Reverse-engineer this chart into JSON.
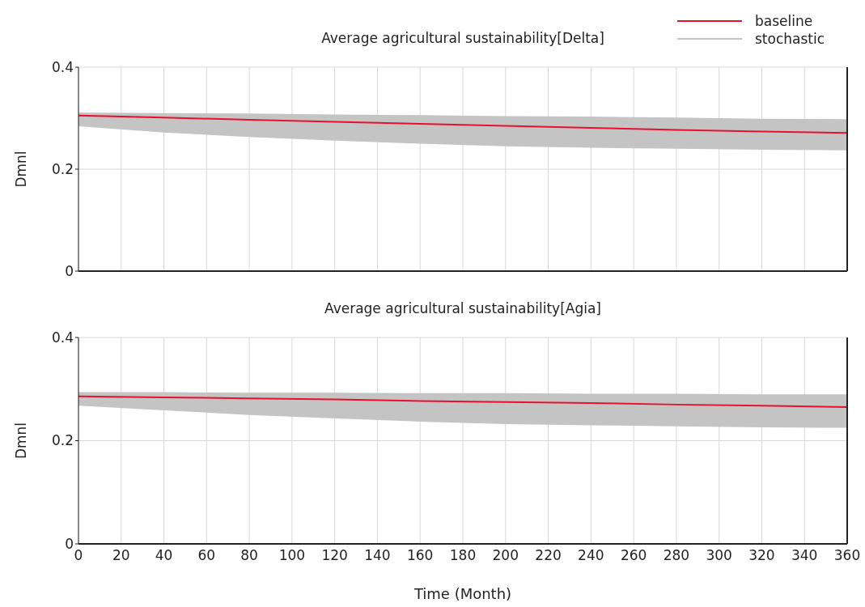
{
  "chart_data": [
    {
      "type": "line",
      "title": "Average agricultural sustainability[Delta]",
      "ylabel": "Dmnl",
      "x": [
        0,
        40,
        80,
        120,
        160,
        200,
        240,
        280,
        320,
        360
      ],
      "xlim": [
        0,
        360
      ],
      "xticks": [
        0,
        20,
        40,
        60,
        80,
        100,
        120,
        140,
        160,
        180,
        200,
        220,
        240,
        260,
        280,
        300,
        320,
        340,
        360
      ],
      "ylim": [
        0,
        0.4
      ],
      "yticks": [
        0,
        0.2,
        0.4
      ],
      "grid": true,
      "legend": "top right",
      "tick_labels": "y",
      "series": [
        {
          "name": "stochastic",
          "type": "area",
          "color": "#c4c4c4",
          "values": [
            null,
            null,
            null,
            null,
            null,
            null,
            null,
            null,
            null,
            null
          ],
          "lower": [
            0.284,
            0.272,
            0.263,
            0.256,
            0.25,
            0.245,
            0.242,
            0.24,
            0.238,
            0.237
          ],
          "upper": [
            0.311,
            0.31,
            0.309,
            0.307,
            0.306,
            0.304,
            0.303,
            0.301,
            0.299,
            0.298
          ]
        },
        {
          "name": "baseline",
          "color": "#e8102e",
          "values": [
            0.305,
            0.301,
            0.297,
            0.293,
            0.289,
            0.285,
            0.281,
            0.277,
            0.274,
            0.271
          ]
        }
      ]
    },
    {
      "type": "line",
      "title": "Average agricultural sustainability[Agia]",
      "ylabel": "Dmnl",
      "xlabel": "Time (Month)",
      "x": [
        0,
        40,
        80,
        120,
        160,
        200,
        240,
        280,
        320,
        360
      ],
      "xlim": [
        0,
        360
      ],
      "xticks": [
        0,
        20,
        40,
        60,
        80,
        100,
        120,
        140,
        160,
        180,
        200,
        220,
        240,
        260,
        280,
        300,
        320,
        340,
        360
      ],
      "ylim": [
        0,
        0.4
      ],
      "yticks": [
        0,
        0.2,
        0.4
      ],
      "grid": true,
      "series": [
        {
          "type": "area",
          "color": "#c4c4c4",
          "values": [
            null,
            null,
            null,
            null,
            null,
            null,
            null,
            null,
            null,
            null
          ],
          "lower": [
            0.268,
            0.259,
            0.25,
            0.243,
            0.237,
            0.232,
            0.23,
            0.228,
            0.226,
            0.225
          ],
          "upper": [
            0.294,
            0.294,
            0.293,
            0.293,
            0.292,
            0.292,
            0.291,
            0.291,
            0.29,
            0.29
          ]
        },
        {
          "color": "#e8102e",
          "values": [
            0.286,
            0.284,
            0.282,
            0.28,
            0.277,
            0.275,
            0.273,
            0.27,
            0.268,
            0.265
          ]
        }
      ]
    }
  ]
}
